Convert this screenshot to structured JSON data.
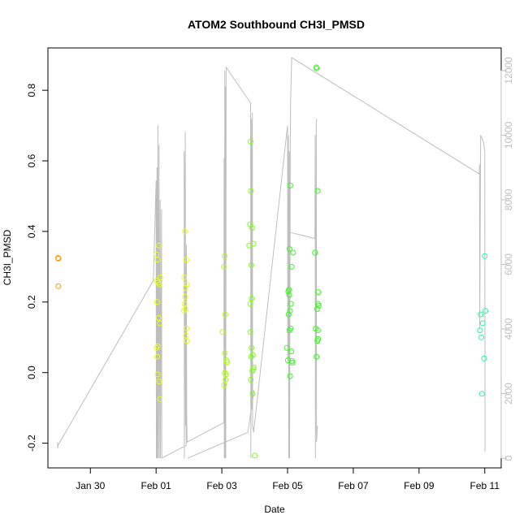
{
  "chart_data": {
    "type": "scatter",
    "title": "ATOM2 Southbound CH3I_PMSD",
    "xlabel": "Date",
    "ylabel": "CH3I_PMSD",
    "x_ticks": [
      "Jan 30",
      "Feb 01",
      "Feb 03",
      "Feb 05",
      "Feb 07",
      "Feb 09",
      "Feb 11"
    ],
    "y_ticks": [
      -0.2,
      0.0,
      0.2,
      0.4,
      0.6,
      0.8
    ],
    "y_tick_labels": [
      "-0.2",
      "0.0",
      "0.2",
      "0.4",
      "0.6",
      "0.8"
    ],
    "y_right_ticks": [
      "0",
      "2000",
      "4000",
      "6000",
      "8000",
      "10000",
      "12000"
    ],
    "xlim": [
      "2016-01-28T17:00",
      "2016-02-11T12:00"
    ],
    "ylim": [
      -0.27,
      0.92
    ],
    "y_right_lim": [
      -300,
      12700
    ],
    "point_colors": {
      "orange": "#ff9900",
      "yellow": "#e6ff1a",
      "yellow_green": "#b3ff1a",
      "light_green": "#80ff1a",
      "green": "#33ff1a",
      "aqua_green": "#1aff99"
    },
    "line_color": "#bebebe",
    "series": [
      {
        "color_key": "orange",
        "points": [
          {
            "x": "2016-01-29T00:30",
            "y": 0.325
          },
          {
            "x": "2016-01-29T00:40",
            "y": 0.323
          },
          {
            "x": "2016-01-29T00:35",
            "y": 0.245
          }
        ]
      },
      {
        "color_key": "yellow",
        "points": [
          {
            "x": "2016-02-01T00:10",
            "y": 0.335
          },
          {
            "x": "2016-02-01T01:00",
            "y": 0.32
          },
          {
            "x": "2016-02-01T02:00",
            "y": 0.36
          },
          {
            "x": "2016-02-01T03:00",
            "y": 0.27
          },
          {
            "x": "2016-02-01T00:30",
            "y": 0.26
          },
          {
            "x": "2016-02-01T01:30",
            "y": 0.255
          },
          {
            "x": "2016-02-01T02:30",
            "y": 0.25
          },
          {
            "x": "2016-02-01T00:45",
            "y": 0.2
          },
          {
            "x": "2016-02-01T01:45",
            "y": 0.155
          },
          {
            "x": "2016-02-01T02:45",
            "y": 0.14
          },
          {
            "x": "2016-02-01T00:20",
            "y": 0.07
          },
          {
            "x": "2016-02-01T01:20",
            "y": 0.075
          },
          {
            "x": "2016-02-01T00:50",
            "y": 0.045
          },
          {
            "x": "2016-02-01T01:10",
            "y": -0.005
          },
          {
            "x": "2016-02-01T02:10",
            "y": -0.025
          },
          {
            "x": "2016-02-01T02:40",
            "y": -0.075
          },
          {
            "x": "2016-02-01T21:00",
            "y": 0.4
          },
          {
            "x": "2016-02-01T22:00",
            "y": 0.32
          },
          {
            "x": "2016-02-01T20:30",
            "y": 0.27
          },
          {
            "x": "2016-02-01T21:30",
            "y": 0.24
          },
          {
            "x": "2016-02-01T22:30",
            "y": 0.25
          },
          {
            "x": "2016-02-01T21:15",
            "y": 0.215
          },
          {
            "x": "2016-02-01T20:45",
            "y": 0.195
          },
          {
            "x": "2016-02-01T21:45",
            "y": 0.18
          },
          {
            "x": "2016-02-01T20:15",
            "y": 0.175
          },
          {
            "x": "2016-02-01T22:15",
            "y": 0.125
          },
          {
            "x": "2016-02-01T21:50",
            "y": 0.105
          },
          {
            "x": "2016-02-01T22:20",
            "y": 0.09
          }
        ]
      },
      {
        "color_key": "yellow_green",
        "points": [
          {
            "x": "2016-02-03T02:00",
            "y": 0.33
          },
          {
            "x": "2016-02-03T01:30",
            "y": 0.3
          },
          {
            "x": "2016-02-03T02:30",
            "y": 0.165
          },
          {
            "x": "2016-02-03T00:30",
            "y": 0.115
          },
          {
            "x": "2016-02-03T02:15",
            "y": 0.055
          },
          {
            "x": "2016-02-03T03:30",
            "y": 0.035
          },
          {
            "x": "2016-02-03T03:45",
            "y": 0.03
          },
          {
            "x": "2016-02-03T02:10",
            "y": 0.0
          },
          {
            "x": "2016-02-03T02:50",
            "y": -0.005
          },
          {
            "x": "2016-02-03T03:10",
            "y": -0.005
          },
          {
            "x": "2016-02-03T02:40",
            "y": -0.02
          },
          {
            "x": "2016-02-03T01:45",
            "y": -0.035
          }
        ]
      },
      {
        "color_key": "light_green",
        "points": [
          {
            "x": "2016-02-03T21:00",
            "y": 0.655
          },
          {
            "x": "2016-02-03T21:15",
            "y": 0.515
          },
          {
            "x": "2016-02-03T20:30",
            "y": 0.42
          },
          {
            "x": "2016-02-03T22:00",
            "y": 0.41
          },
          {
            "x": "2016-02-03T23:00",
            "y": 0.365
          },
          {
            "x": "2016-02-03T20:00",
            "y": 0.36
          },
          {
            "x": "2016-02-03T21:30",
            "y": 0.305
          },
          {
            "x": "2016-02-03T21:45",
            "y": 0.21
          },
          {
            "x": "2016-02-03T20:45",
            "y": 0.195
          },
          {
            "x": "2016-02-03T20:50",
            "y": 0.115
          },
          {
            "x": "2016-02-03T21:40",
            "y": 0.07
          },
          {
            "x": "2016-02-03T22:40",
            "y": 0.05
          },
          {
            "x": "2016-02-03T21:20",
            "y": 0.045
          },
          {
            "x": "2016-02-03T23:20",
            "y": 0.015
          },
          {
            "x": "2016-02-03T22:50",
            "y": 0.01
          },
          {
            "x": "2016-02-03T22:10",
            "y": 0.005
          },
          {
            "x": "2016-02-03T21:10",
            "y": -0.02
          },
          {
            "x": "2016-02-03T22:30",
            "y": -0.06
          },
          {
            "x": "2016-02-04T00:00",
            "y": -0.235
          }
        ]
      },
      {
        "color_key": "green",
        "points": [
          {
            "x": "2016-02-05T02:00",
            "y": 0.53
          },
          {
            "x": "2016-02-05T01:30",
            "y": 0.35
          },
          {
            "x": "2016-02-05T04:00",
            "y": 0.34
          },
          {
            "x": "2016-02-05T03:00",
            "y": 0.3
          },
          {
            "x": "2016-02-05T01:00",
            "y": 0.235
          },
          {
            "x": "2016-02-05T00:30",
            "y": 0.23
          },
          {
            "x": "2016-02-05T01:10",
            "y": 0.22
          },
          {
            "x": "2016-02-05T02:30",
            "y": 0.195
          },
          {
            "x": "2016-02-05T01:45",
            "y": 0.175
          },
          {
            "x": "2016-02-05T00:45",
            "y": 0.165
          },
          {
            "x": "2016-02-05T02:15",
            "y": 0.125
          },
          {
            "x": "2016-02-05T01:20",
            "y": 0.12
          },
          {
            "x": "2016-02-04T23:30",
            "y": 0.07
          },
          {
            "x": "2016-02-05T02:45",
            "y": 0.06
          },
          {
            "x": "2016-02-05T00:15",
            "y": 0.035
          },
          {
            "x": "2016-02-05T03:15",
            "y": 0.033
          },
          {
            "x": "2016-02-05T03:30",
            "y": 0.028
          },
          {
            "x": "2016-02-05T01:50",
            "y": -0.01
          },
          {
            "x": "2016-02-05T21:00",
            "y": 0.865
          },
          {
            "x": "2016-02-05T21:15",
            "y": 0.862
          },
          {
            "x": "2016-02-05T22:00",
            "y": 0.515
          },
          {
            "x": "2016-02-05T20:00",
            "y": 0.34
          },
          {
            "x": "2016-02-05T22:30",
            "y": 0.228
          },
          {
            "x": "2016-02-05T22:15",
            "y": 0.195
          },
          {
            "x": "2016-02-05T22:45",
            "y": 0.19
          },
          {
            "x": "2016-02-05T21:30",
            "y": 0.18
          },
          {
            "x": "2016-02-05T20:30",
            "y": 0.125
          },
          {
            "x": "2016-02-05T22:10",
            "y": 0.12
          },
          {
            "x": "2016-02-05T22:20",
            "y": 0.095
          },
          {
            "x": "2016-02-05T21:45",
            "y": 0.09
          },
          {
            "x": "2016-02-05T21:05",
            "y": 0.045
          }
        ]
      },
      {
        "color_key": "aqua_green",
        "points": [
          {
            "x": "2016-02-11T00:00",
            "y": 0.33
          },
          {
            "x": "2016-02-11T00:30",
            "y": 0.175
          },
          {
            "x": "2016-02-10T21:00",
            "y": 0.165
          },
          {
            "x": "2016-02-10T22:30",
            "y": 0.14
          },
          {
            "x": "2016-02-10T20:30",
            "y": 0.12
          },
          {
            "x": "2016-02-10T21:30",
            "y": 0.1
          },
          {
            "x": "2016-02-10T23:30",
            "y": 0.04
          },
          {
            "x": "2016-02-10T22:00",
            "y": -0.06
          }
        ]
      }
    ],
    "secondary_line": [
      {
        "x": "2016-01-29T00:00",
        "y": 500
      },
      {
        "x": "2016-01-29T00:10",
        "y": 300
      },
      {
        "x": "2016-01-29T00:20",
        "y": 400
      },
      {
        "x": "2016-01-31T22:00",
        "y": 5500
      },
      {
        "x": "2016-02-01T00:00",
        "y": 8600
      },
      {
        "x": "2016-02-01T00:10",
        "y": 0
      },
      {
        "x": "2016-02-01T00:40",
        "y": 9000
      },
      {
        "x": "2016-02-01T00:50",
        "y": 0
      },
      {
        "x": "2016-02-01T01:20",
        "y": 10300
      },
      {
        "x": "2016-02-01T01:30",
        "y": 0
      },
      {
        "x": "2016-02-01T02:10",
        "y": 9700
      },
      {
        "x": "2016-02-01T02:20",
        "y": 0
      },
      {
        "x": "2016-02-01T03:00",
        "y": 8000
      },
      {
        "x": "2016-02-01T03:10",
        "y": 0
      },
      {
        "x": "2016-02-01T04:00",
        "y": 7700
      },
      {
        "x": "2016-02-01T04:10",
        "y": 0
      },
      {
        "x": "2016-02-01T22:00",
        "y": 400
      },
      {
        "x": "2016-02-01T20:30",
        "y": 9500
      },
      {
        "x": "2016-02-01T20:40",
        "y": 0
      },
      {
        "x": "2016-02-01T21:20",
        "y": 10100
      },
      {
        "x": "2016-02-01T21:30",
        "y": 1000
      },
      {
        "x": "2016-02-01T22:10",
        "y": 6600
      },
      {
        "x": "2016-02-01T22:20",
        "y": 1500
      },
      {
        "x": "2016-02-01T22:40",
        "y": 500
      },
      {
        "x": "2016-02-03T01:30",
        "y": 1100
      },
      {
        "x": "2016-02-03T01:40",
        "y": 9300
      },
      {
        "x": "2016-02-03T01:50",
        "y": 0
      },
      {
        "x": "2016-02-03T02:10",
        "y": 12000
      },
      {
        "x": "2016-02-03T02:20",
        "y": 0
      },
      {
        "x": "2016-02-03T02:40",
        "y": 11500
      },
      {
        "x": "2016-02-03T02:50",
        "y": 0
      },
      {
        "x": "2016-02-03T03:10",
        "y": 12100
      },
      {
        "x": "2016-02-03T21:00",
        "y": 11000
      },
      {
        "x": "2016-02-03T21:10",
        "y": 0
      },
      {
        "x": "2016-02-03T21:40",
        "y": 10500
      },
      {
        "x": "2016-02-03T21:50",
        "y": 1500
      },
      {
        "x": "2016-02-03T22:20",
        "y": 10700
      },
      {
        "x": "2016-02-03T22:30",
        "y": 1000
      },
      {
        "x": "2016-02-03T23:10",
        "y": 800
      },
      {
        "x": "2016-02-05T00:00",
        "y": 10300
      },
      {
        "x": "2016-02-05T00:10",
        "y": 3000
      },
      {
        "x": "2016-02-05T00:40",
        "y": 10000
      },
      {
        "x": "2016-02-05T00:50",
        "y": 0
      },
      {
        "x": "2016-02-05T01:20",
        "y": 9500
      },
      {
        "x": "2016-02-05T01:30",
        "y": 0
      },
      {
        "x": "2016-02-05T02:00",
        "y": 9800
      },
      {
        "x": "2016-02-05T02:10",
        "y": 11000
      },
      {
        "x": "2016-02-05T03:00",
        "y": 12400
      },
      {
        "x": "2016-02-10T20:00",
        "y": 8800
      },
      {
        "x": "2016-02-10T20:10",
        "y": 9100
      },
      {
        "x": "2016-02-10T20:20",
        "y": 4000
      },
      {
        "x": "2016-02-10T21:00",
        "y": 10000
      },
      {
        "x": "2016-02-10T23:00",
        "y": 9800
      },
      {
        "x": "2016-02-11T00:00",
        "y": 9500
      },
      {
        "x": "2016-02-11T00:10",
        "y": 200
      }
    ],
    "secondary_line_2": [
      {
        "x": "2016-02-05T01:00",
        "y": 7000
      },
      {
        "x": "2016-02-05T20:00",
        "y": 6800
      },
      {
        "x": "2016-02-05T20:10",
        "y": 10000
      },
      {
        "x": "2016-02-05T20:20",
        "y": 0
      },
      {
        "x": "2016-02-05T21:00",
        "y": 10500
      },
      {
        "x": "2016-02-05T21:10",
        "y": 500
      },
      {
        "x": "2016-02-05T21:50",
        "y": 1000
      }
    ],
    "secondary_line_3": [
      {
        "x": "2016-02-01T23:00",
        "y": 0
      },
      {
        "x": "2016-02-03T19:00",
        "y": 800
      },
      {
        "x": "2016-02-03T23:30",
        "y": 2100
      }
    ]
  }
}
